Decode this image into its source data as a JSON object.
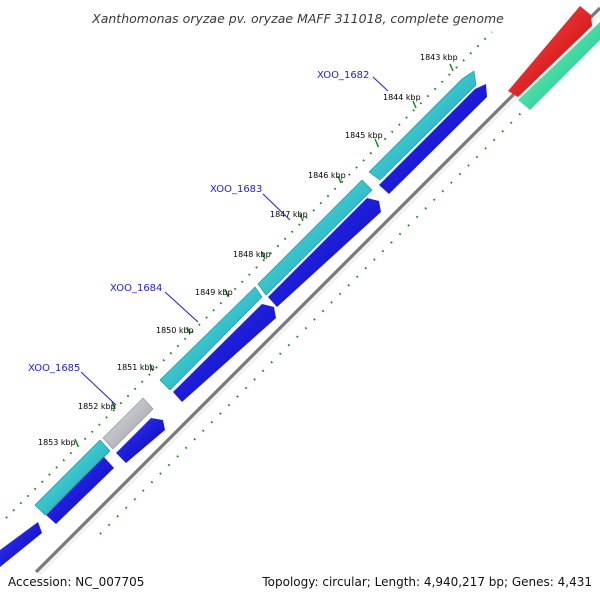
{
  "title": "Xanthomonas oryzae pv. oryzae MAFF 311018, complete genome",
  "footer": {
    "accession": "Accession: NC_007705",
    "summary": "Topology: circular; Length: 4,940,217 bp; Genes: 4,431"
  },
  "ticks": [
    "1843 kbp",
    "1844 kbp",
    "1845 kbp",
    "1846 kbp",
    "1847 kbp",
    "1848 kbp",
    "1849 kbp",
    "1850 kbp",
    "1851 kbp",
    "1852 kbp",
    "1853 kbp"
  ],
  "genes": [
    {
      "label": "XOO_1682"
    },
    {
      "label": "XOO_1683"
    },
    {
      "label": "XOO_1684"
    },
    {
      "label": "XOO_1685"
    }
  ],
  "colors": {
    "cds_forward": "#1010e0",
    "cds_outer": "#22c4c8",
    "cds_pseudo": "#b8b8c0",
    "rrna": "#e81010",
    "trna": "#20e0a0",
    "backbone": "#777777",
    "dots": "#1a8a1a",
    "label": "#1e1ed2"
  }
}
